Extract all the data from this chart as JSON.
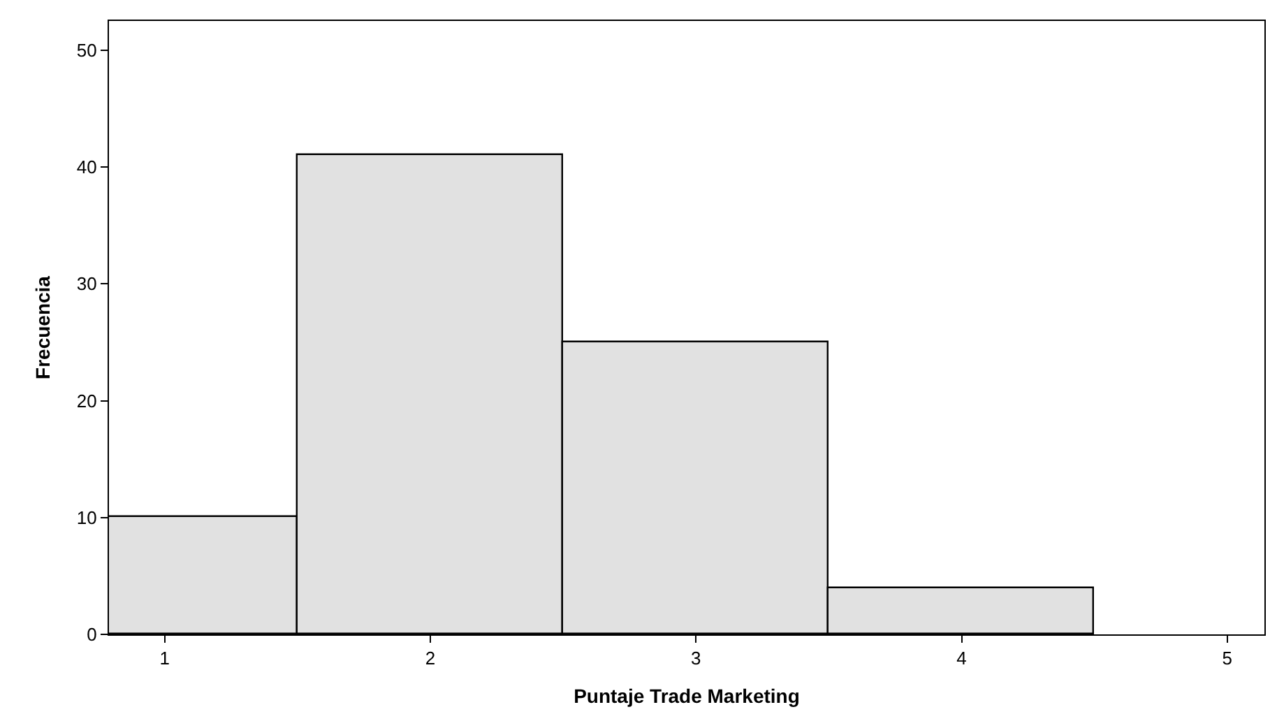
{
  "chart_data": {
    "type": "histogram",
    "xlabel": "Puntaje Trade Marketing",
    "ylabel": "Frecuencia",
    "bins": [
      0.79,
      1.5,
      2.5,
      3.5,
      4.5
    ],
    "values": [
      10,
      41,
      25,
      4
    ],
    "color": "#e1e1e1",
    "xlim": [
      0.79,
      5.14
    ],
    "xticks": [
      1,
      2,
      3,
      4,
      5
    ],
    "ylim": [
      0,
      52.5
    ],
    "yticks": [
      0,
      10,
      20,
      30,
      40,
      50
    ]
  }
}
